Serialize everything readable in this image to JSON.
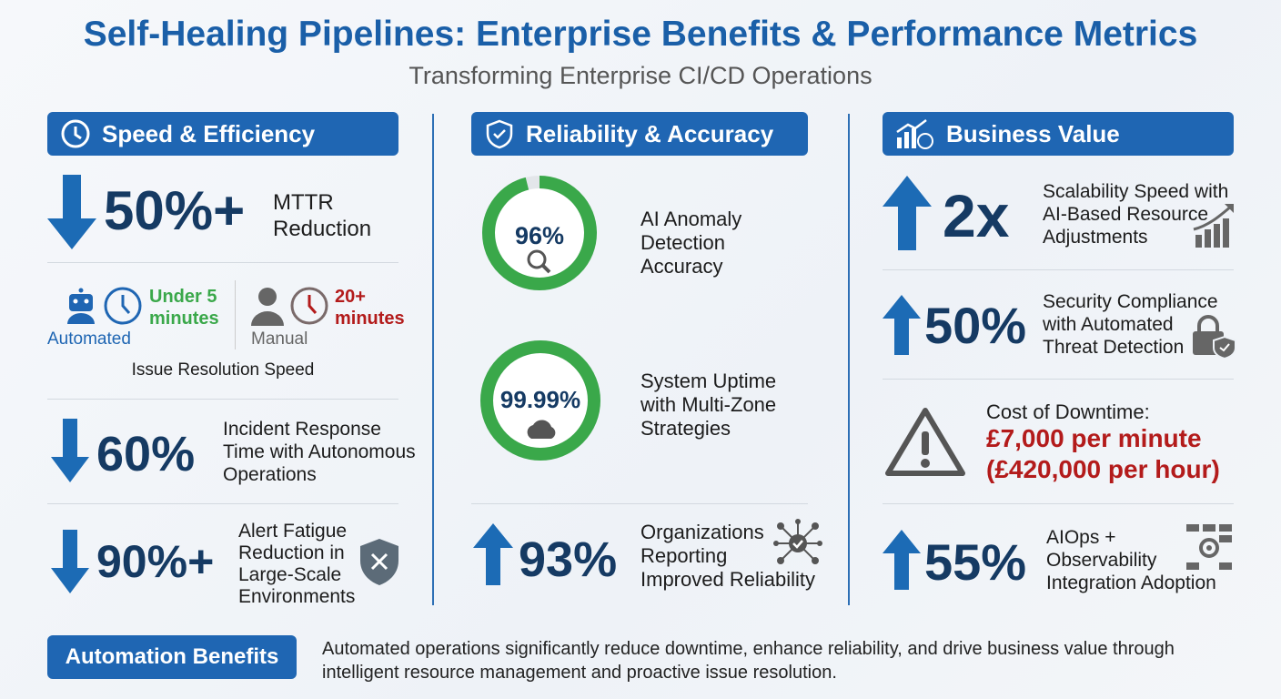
{
  "title": "Self-Healing Pipelines: Enterprise Benefits & Performance Metrics",
  "subtitle": "Transforming Enterprise CI/CD Operations",
  "colors": {
    "primary": "#1f66b3",
    "navy": "#153a63",
    "green": "#3aa84a",
    "red": "#b31b1b"
  },
  "speed": {
    "header": "Speed & Efficiency",
    "header_icon": "clock-icon",
    "mttr": {
      "value": "50%+",
      "label_1": "MTTR",
      "label_2": "Reduction",
      "direction": "down"
    },
    "resolution": {
      "auto_time_1": "Under 5",
      "auto_time_2": "minutes",
      "auto_label": "Automated",
      "manual_time_1": "20+",
      "manual_time_2": "minutes",
      "manual_label": "Manual",
      "caption": "Issue Resolution Speed"
    },
    "incident": {
      "value": "60%",
      "label": [
        "Incident Response",
        "Time with Autonomous",
        "Operations"
      ],
      "direction": "down"
    },
    "alert": {
      "value": "90%+",
      "label": [
        "Alert Fatigue",
        "Reduction in",
        "Large-Scale",
        "Environments"
      ],
      "direction": "down"
    }
  },
  "reliability": {
    "header": "Reliability & Accuracy",
    "header_icon": "shield-check-icon",
    "anomaly": {
      "value": "96%",
      "percent": 96,
      "label": [
        "AI Anomaly",
        "Detection",
        "Accuracy"
      ]
    },
    "uptime": {
      "value": "99.99%",
      "percent": 99.99,
      "label": [
        "System Uptime",
        "with Multi-Zone",
        "Strategies"
      ]
    },
    "orgs": {
      "value": "93%",
      "label": [
        "Organizations",
        "Reporting",
        "Improved Reliability"
      ],
      "direction": "up"
    }
  },
  "business": {
    "header": "Business Value",
    "header_icon": "chart-money-icon",
    "scale": {
      "value": "2x",
      "label": [
        "Scalability Speed with",
        "AI-Based Resource",
        "Adjustments"
      ],
      "direction": "up"
    },
    "security": {
      "value": "50%",
      "label": [
        "Security Compliance",
        "with Automated",
        "Threat Detection"
      ],
      "direction": "up"
    },
    "downtime": {
      "label": "Cost of Downtime:",
      "per_minute": "£7,000 per minute",
      "per_hour": "(£420,000 per hour)"
    },
    "aiops": {
      "value": "55%",
      "label": [
        "AIOps +",
        "Observability",
        "Integration Adoption"
      ],
      "direction": "up"
    }
  },
  "footer": {
    "label": "Automation Benefits",
    "text_1": "Automated operations significantly reduce downtime, enhance reliability, and drive business value through",
    "text_2": "intelligent resource management and proactive issue resolution."
  }
}
